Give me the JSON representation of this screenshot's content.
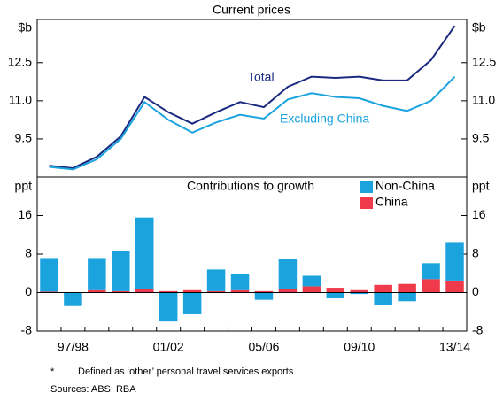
{
  "chart_data": [
    {
      "type": "line",
      "title": "Current prices",
      "y_label": "$b",
      "ylim": [
        8,
        14.2
      ],
      "yticks": [
        9.5,
        {
          "value": 11,
          "label": "11.0"
        },
        12.5
      ],
      "annotations": [
        "Total",
        "Excluding China"
      ],
      "series": [
        {
          "name": "Total",
          "color": "#1a2a80",
          "values": [
            8.45,
            8.35,
            8.8,
            9.6,
            11.15,
            10.55,
            10.1,
            10.55,
            10.95,
            10.75,
            11.55,
            11.95,
            11.9,
            11.95,
            11.8,
            11.8,
            12.6,
            13.95
          ]
        },
        {
          "name": "Excluding China",
          "color": "#1ba3dd",
          "values": [
            8.4,
            8.3,
            8.7,
            9.5,
            10.95,
            10.25,
            9.75,
            10.15,
            10.45,
            10.3,
            11.05,
            11.3,
            11.15,
            11.1,
            10.8,
            10.6,
            11.0,
            11.95
          ]
        }
      ]
    },
    {
      "type": "bar",
      "stacked": true,
      "title": "Contributions to growth",
      "y_label": "ppt",
      "ylim": [
        -8,
        24
      ],
      "yticks": [
        -8,
        0,
        8,
        16
      ],
      "legend": "top-right",
      "categories": [
        null,
        "97/98",
        null,
        null,
        null,
        "01/02",
        null,
        null,
        null,
        "05/06",
        null,
        null,
        null,
        "09/10",
        null,
        null,
        null,
        "13/14"
      ],
      "series": [
        {
          "name": "Non-China",
          "color": "#1ba3dd",
          "values": [
            6.8,
            -2.8,
            6.5,
            8.3,
            14.8,
            -6,
            -4.5,
            4.5,
            3.3,
            -1.5,
            6.2,
            2.2,
            -1.2,
            -0.3,
            -2.5,
            -1.8,
            3.3,
            8.0
          ]
        },
        {
          "name": "China",
          "color": "#ee3a4a",
          "values": [
            0.2,
            0.1,
            0.5,
            0.3,
            0.8,
            0.3,
            0.5,
            0.3,
            0.5,
            0.3,
            0.7,
            1.3,
            1.0,
            0.5,
            1.6,
            1.8,
            2.8,
            2.5
          ]
        }
      ]
    }
  ],
  "footnotes": [
    "*",
    "Defined as ‘other’ personal travel services exports",
    "Sources:   ABS; RBA"
  ]
}
